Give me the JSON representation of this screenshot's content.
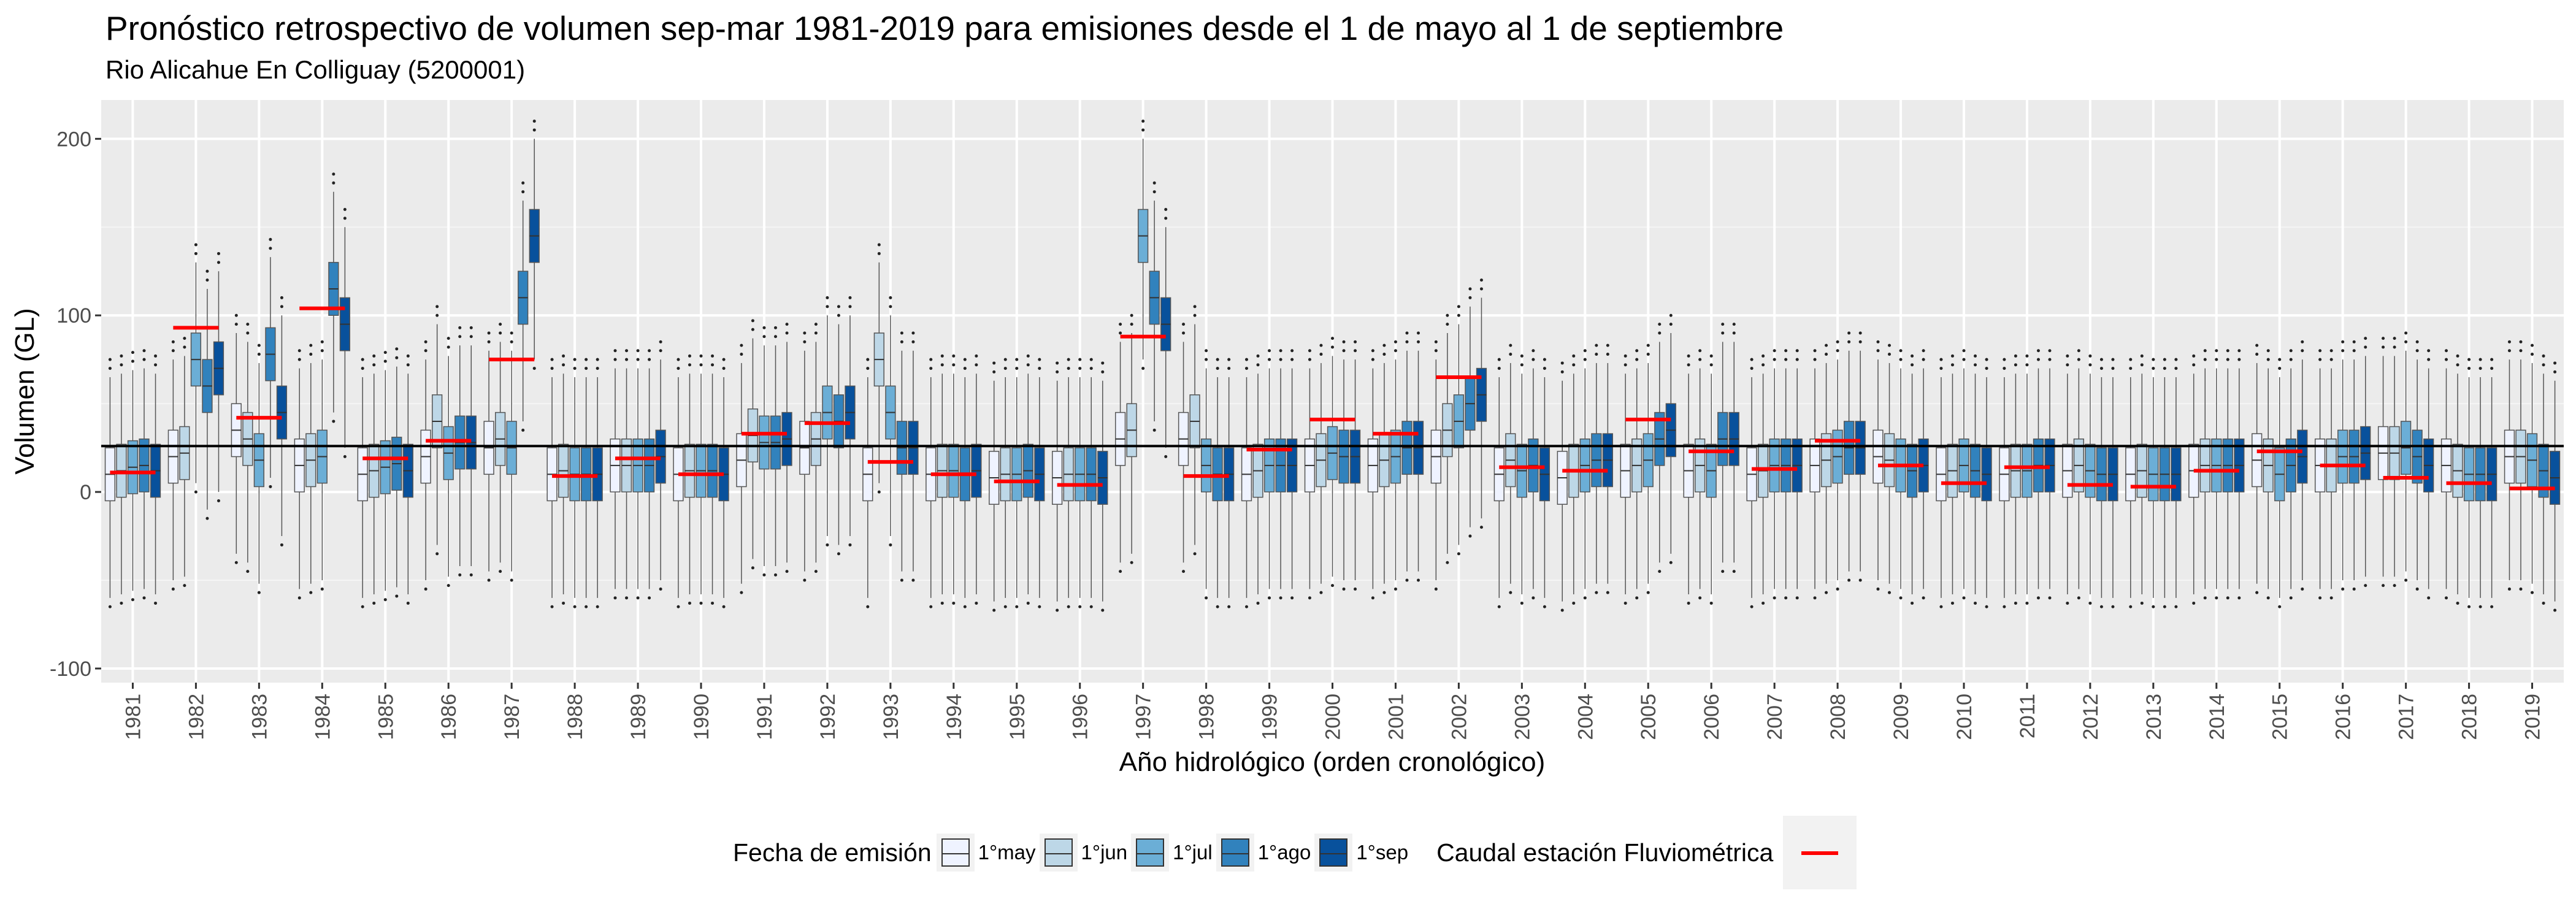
{
  "title": "Pronóstico retrospectivo de volumen sep-mar 1981-2019 para emisiones desde el 1 de mayo al 1 de septiembre",
  "subtitle": "Rio Alicahue En Colliguay (5200001)",
  "legend": {
    "fill_title": "Fecha de emisión",
    "fill_items": [
      "1°may",
      "1°jun",
      "1°jul",
      "1°ago",
      "1°sep"
    ],
    "observed_label": "Caudal estación Fluviométrica"
  },
  "colors": {
    "series": [
      "#eff3ff",
      "#bdd7e7",
      "#6baed6",
      "#3182bd",
      "#08519c"
    ],
    "observed": "#ff0000",
    "panel": "#ebebeb",
    "grid": "#ffffff",
    "reference": "#000000"
  },
  "chart_data": {
    "type": "boxplot",
    "xlabel": "Año hidrológico (orden cronológico)",
    "ylabel": "Volumen (GL)",
    "ylim": [
      -108,
      222
    ],
    "yticks": [
      -100,
      0,
      100,
      200
    ],
    "reference_line_y": 26,
    "grid": true,
    "legend_position": "bottom",
    "categories": [
      "1981",
      "1982",
      "1983",
      "1984",
      "1985",
      "1986",
      "1987",
      "1988",
      "1989",
      "1990",
      "1991",
      "1992",
      "1993",
      "1994",
      "1995",
      "1996",
      "1997",
      "1998",
      "1999",
      "2000",
      "2001",
      "2002",
      "2003",
      "2004",
      "2005",
      "2006",
      "2007",
      "2008",
      "2009",
      "2010",
      "2011",
      "2012",
      "2013",
      "2014",
      "2015",
      "2016",
      "2017",
      "2018",
      "2019"
    ],
    "series_names": [
      "1°may",
      "1°jun",
      "1°jul",
      "1°ago",
      "1°sep"
    ],
    "observed": [
      11,
      93,
      42,
      104,
      19,
      29,
      75,
      9,
      19,
      10,
      33,
      39,
      17,
      10,
      6,
      4,
      88,
      9,
      24,
      41,
      33,
      65,
      14,
      12,
      41,
      23,
      13,
      29,
      15,
      5,
      14,
      4,
      3,
      12,
      23,
      15,
      8,
      5,
      2
    ],
    "medians": [
      [
        10,
        20,
        35,
        15,
        10,
        20,
        25,
        10,
        15,
        10,
        18,
        25,
        10,
        10,
        8,
        8,
        30,
        30,
        10,
        15,
        15,
        20,
        10,
        8,
        12,
        12,
        10,
        15,
        20,
        10,
        10,
        12,
        10,
        12,
        18,
        15,
        22,
        15,
        20
      ],
      [
        12,
        22,
        30,
        18,
        12,
        40,
        30,
        12,
        15,
        12,
        32,
        30,
        75,
        12,
        10,
        10,
        35,
        40,
        12,
        18,
        18,
        35,
        18,
        12,
        15,
        15,
        12,
        18,
        18,
        12,
        12,
        15,
        12,
        15,
        15,
        15,
        22,
        12,
        20
      ],
      [
        14,
        75,
        18,
        20,
        14,
        22,
        25,
        10,
        15,
        12,
        28,
        45,
        45,
        12,
        10,
        10,
        145,
        15,
        15,
        22,
        20,
        40,
        12,
        15,
        18,
        12,
        15,
        20,
        15,
        15,
        12,
        12,
        10,
        15,
        10,
        20,
        25,
        10,
        18
      ],
      [
        15,
        60,
        78,
        115,
        16,
        28,
        110,
        10,
        15,
        12,
        28,
        40,
        25,
        10,
        12,
        10,
        110,
        10,
        15,
        20,
        25,
        50,
        15,
        18,
        30,
        30,
        15,
        25,
        12,
        12,
        15,
        10,
        10,
        15,
        15,
        20,
        20,
        10,
        12
      ],
      [
        12,
        70,
        45,
        95,
        12,
        28,
        145,
        10,
        20,
        10,
        30,
        45,
        25,
        12,
        10,
        8,
        95,
        10,
        15,
        20,
        25,
        55,
        10,
        18,
        35,
        30,
        15,
        25,
        15,
        10,
        15,
        10,
        10,
        15,
        20,
        22,
        15,
        10,
        8
      ]
    ]
  }
}
